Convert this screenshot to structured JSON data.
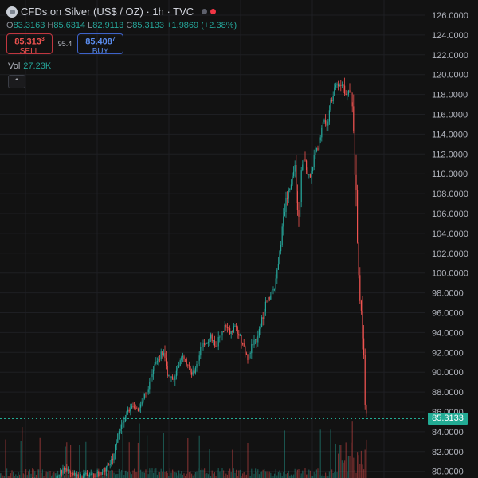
{
  "header": {
    "title": "CFDs on Silver (US$ / OZ) · 1h · TVC",
    "ohlc": {
      "o_label": "O",
      "o": "83.3163",
      "h_label": "H",
      "h": "85.6314",
      "l_label": "L",
      "l": "82.9113",
      "c_label": "C",
      "c": "85.3133",
      "change": "+1.9869 (+2.38%)"
    }
  },
  "trade": {
    "sell_price_main": "85.313",
    "sell_price_sup": "3",
    "sell_label": "SELL",
    "spread": "95.4",
    "buy_price_main": "85.408",
    "buy_price_sup": "7",
    "buy_label": "BUY"
  },
  "volume": {
    "label": "Vol",
    "value": "27.23K"
  },
  "controls": {
    "collapse_icon": "chevron-up-icon",
    "collapse_glyph": "⌃"
  },
  "colors": {
    "up": "#26a69a",
    "down": "#ef5350",
    "background": "#121212",
    "grid": "#1e1f23",
    "last_price": "#22ab94"
  },
  "chart_data": {
    "type": "candlestick",
    "title": "CFDs on Silver (US$ / OZ) · 1h · TVC",
    "y_axis_side": "right",
    "ylim": [
      79.5,
      126.5
    ],
    "y_ticks": [
      "126.0000",
      "124.0000",
      "122.0000",
      "120.0000",
      "118.0000",
      "116.0000",
      "114.0000",
      "112.0000",
      "110.0000",
      "108.0000",
      "106.0000",
      "104.0000",
      "102.0000",
      "100.0000",
      "98.0000",
      "96.0000",
      "94.0000",
      "92.0000",
      "90.0000",
      "88.0000",
      "86.0000",
      "84.0000",
      "82.0000",
      "80.0000"
    ],
    "y_tick_values": [
      126,
      124,
      122,
      120,
      118,
      116,
      114,
      112,
      110,
      108,
      106,
      104,
      102,
      100,
      98,
      96,
      94,
      92,
      90,
      88,
      86,
      84,
      82,
      80
    ],
    "last_price": 85.3133,
    "last_price_label": "85.3133",
    "price_path": [
      [
        0,
        77.8
      ],
      [
        10,
        78.2
      ],
      [
        20,
        78.0
      ],
      [
        30,
        78.5
      ],
      [
        40,
        79.0
      ],
      [
        50,
        78.6
      ],
      [
        60,
        78.2
      ],
      [
        70,
        79.5
      ],
      [
        80,
        80.3
      ],
      [
        90,
        79.8
      ],
      [
        100,
        79.2
      ],
      [
        110,
        79.8
      ],
      [
        120,
        79.6
      ],
      [
        130,
        80.1
      ],
      [
        140,
        81.2
      ],
      [
        148,
        84.0
      ],
      [
        158,
        85.8
      ],
      [
        165,
        86.8
      ],
      [
        172,
        86.1
      ],
      [
        180,
        87.5
      ],
      [
        188,
        89.0
      ],
      [
        194,
        90.6
      ],
      [
        200,
        91.6
      ],
      [
        205,
        92.3
      ],
      [
        210,
        89.6
      ],
      [
        216,
        89.2
      ],
      [
        222,
        90.4
      ],
      [
        228,
        91.4
      ],
      [
        234,
        91.0
      ],
      [
        240,
        89.5
      ],
      [
        246,
        90.8
      ],
      [
        252,
        92.5
      ],
      [
        258,
        93.0
      ],
      [
        264,
        93.6
      ],
      [
        270,
        92.4
      ],
      [
        276,
        93.8
      ],
      [
        282,
        94.6
      ],
      [
        288,
        94.0
      ],
      [
        294,
        94.5
      ],
      [
        300,
        93.8
      ],
      [
        306,
        92.4
      ],
      [
        310,
        91.2
      ],
      [
        316,
        92.8
      ],
      [
        322,
        93.4
      ],
      [
        328,
        95.2
      ],
      [
        334,
        97.2
      ],
      [
        340,
        97.8
      ],
      [
        346,
        99.2
      ],
      [
        350,
        101.5
      ],
      [
        354,
        104.5
      ],
      [
        358,
        107.0
      ],
      [
        362,
        108.5
      ],
      [
        366,
        109.6
      ],
      [
        370,
        110.8
      ],
      [
        374,
        104.5
      ],
      [
        378,
        110.5
      ],
      [
        382,
        111.5
      ],
      [
        386,
        109.5
      ],
      [
        390,
        110.0
      ],
      [
        394,
        111.8
      ],
      [
        398,
        112.5
      ],
      [
        402,
        113.8
      ],
      [
        406,
        115.8
      ],
      [
        410,
        114.3
      ],
      [
        414,
        117.0
      ],
      [
        418,
        118.2
      ],
      [
        422,
        119.0
      ],
      [
        426,
        118.6
      ],
      [
        430,
        119.5
      ],
      [
        434,
        117.5
      ],
      [
        438,
        118.8
      ],
      [
        442,
        116.0
      ],
      [
        446,
        108.8
      ],
      [
        450,
        98.0
      ],
      [
        454,
        95.0
      ],
      [
        458,
        86.0
      ],
      [
        460,
        85.3
      ]
    ]
  }
}
